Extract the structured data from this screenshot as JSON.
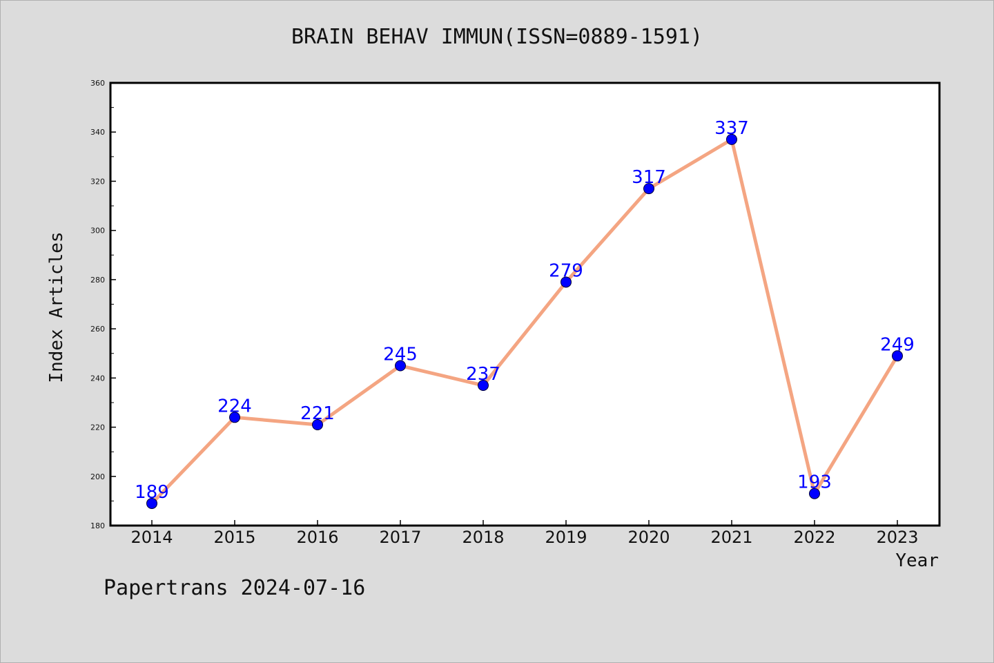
{
  "chart_data": {
    "type": "line",
    "title": "BRAIN BEHAV IMMUN(ISSN=0889-1591)",
    "xlabel": "Year",
    "ylabel": "Index Articles",
    "categories": [
      "2014",
      "2015",
      "2016",
      "2017",
      "2018",
      "2019",
      "2020",
      "2021",
      "2022",
      "2023"
    ],
    "series": [
      {
        "values": [
          189,
          224,
          221,
          245,
          237,
          279,
          317,
          337,
          193,
          249
        ]
      }
    ],
    "ylim": [
      180,
      360
    ],
    "yticks": [
      180,
      200,
      220,
      240,
      260,
      280,
      300,
      320,
      340,
      360
    ],
    "line_color": "#f4a582",
    "marker_color": "#0000ff",
    "label_color": "#0000ff",
    "grid": false,
    "legend": "none"
  },
  "footer": {
    "note": "Papertrans 2024-07-16"
  }
}
